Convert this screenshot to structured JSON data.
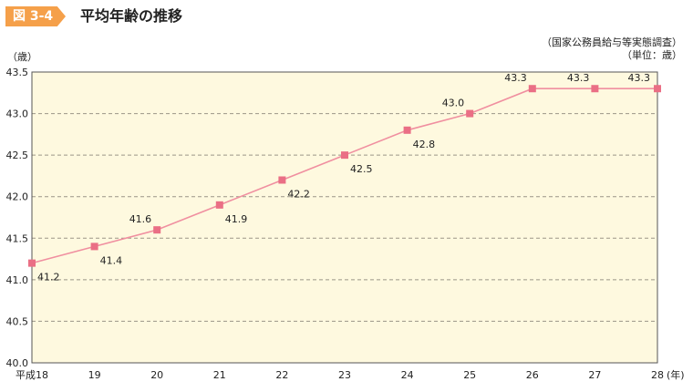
{
  "header": {
    "figure_number": "図 3-4",
    "title": "平均年齢の推移"
  },
  "source_note": "（国家公務員給与等実態調査）",
  "unit_note": "（単位：歳）",
  "colors": {
    "badge": "#f5a04a",
    "plot_bg": "#fef9df",
    "line": "#f08fa0",
    "marker": "#ea6f85"
  },
  "chart_data": {
    "type": "line",
    "ylabel": "（歳）",
    "xlabel": "(年)",
    "categories": [
      "平成18",
      "19",
      "20",
      "21",
      "22",
      "23",
      "24",
      "25",
      "26",
      "27",
      "28"
    ],
    "values": [
      41.2,
      41.4,
      41.6,
      41.9,
      42.2,
      42.5,
      42.8,
      43.0,
      43.3,
      43.3,
      43.3
    ],
    "data_labels": [
      "41.2",
      "41.4",
      "41.6",
      "41.9",
      "42.2",
      "42.5",
      "42.8",
      "43.0",
      "43.3",
      "43.3",
      "43.3"
    ],
    "ylim": [
      40.0,
      43.5
    ],
    "yticks": [
      "40.0",
      "40.5",
      "41.0",
      "41.5",
      "42.0",
      "42.5",
      "43.0",
      "43.5"
    ],
    "grid": true,
    "marker": "square"
  }
}
